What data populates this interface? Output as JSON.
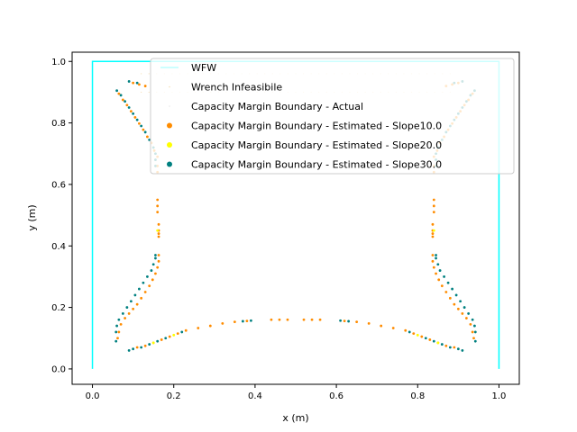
{
  "chart_data": {
    "type": "scatter",
    "title": "",
    "xlabel": "x (m)",
    "ylabel": "y (m)",
    "xlim": [
      -0.05,
      1.05
    ],
    "ylim": [
      -0.05,
      1.03
    ],
    "xticks": [
      "0.0",
      "0.2",
      "0.4",
      "0.6",
      "0.8",
      "1.0"
    ],
    "yticks": [
      "0.0",
      "0.2",
      "0.4",
      "0.6",
      "0.8",
      "1.0"
    ],
    "grid": false,
    "legend_position": "top-right",
    "colors": {
      "wfw": "#00ffff",
      "infeasible": "#f5deb3",
      "actual": "#e8e8e8",
      "slope10": "#ff8c00",
      "slope20": "#ffff00",
      "slope30": "#008080"
    },
    "boundary_path": [
      [
        0.0,
        0.0
      ],
      [
        0.0,
        1.0
      ],
      [
        1.0,
        1.0
      ],
      [
        1.0,
        0.0
      ]
    ],
    "series": [
      {
        "name": "WFW",
        "key": "wfw",
        "marker": "line"
      },
      {
        "name": "Wrench Infeasibile",
        "key": "infeasible",
        "marker": "dot"
      },
      {
        "name": "Capacity Margin Boundary - Actual",
        "key": "actual",
        "marker": "dot"
      },
      {
        "name": "Capacity Margin Boundary - Estimated - Slope10.0",
        "key": "slope10",
        "marker": "dot",
        "points": [
          [
            0.065,
            0.895
          ],
          [
            0.075,
            0.875
          ],
          [
            0.085,
            0.858
          ],
          [
            0.095,
            0.838
          ],
          [
            0.105,
            0.818
          ],
          [
            0.115,
            0.798
          ],
          [
            0.125,
            0.778
          ],
          [
            0.135,
            0.755
          ],
          [
            0.145,
            0.735
          ],
          [
            0.152,
            0.71
          ],
          [
            0.16,
            0.69
          ],
          [
            0.16,
            0.66
          ],
          [
            0.16,
            0.64
          ],
          [
            0.16,
            0.55
          ],
          [
            0.16,
            0.53
          ],
          [
            0.16,
            0.51
          ],
          [
            0.163,
            0.47
          ],
          [
            0.163,
            0.45
          ],
          [
            0.163,
            0.44
          ],
          [
            0.163,
            0.43
          ],
          [
            0.163,
            0.37
          ],
          [
            0.163,
            0.35
          ],
          [
            0.16,
            0.33
          ],
          [
            0.155,
            0.31
          ],
          [
            0.148,
            0.29
          ],
          [
            0.14,
            0.27
          ],
          [
            0.13,
            0.25
          ],
          [
            0.12,
            0.23
          ],
          [
            0.11,
            0.21
          ],
          [
            0.1,
            0.195
          ],
          [
            0.09,
            0.18
          ],
          [
            0.08,
            0.165
          ],
          [
            0.07,
            0.145
          ],
          [
            0.065,
            0.12
          ],
          [
            0.062,
            0.1
          ],
          [
            0.11,
            0.07
          ],
          [
            0.13,
            0.075
          ],
          [
            0.15,
            0.085
          ],
          [
            0.17,
            0.095
          ],
          [
            0.19,
            0.105
          ],
          [
            0.21,
            0.115
          ],
          [
            0.23,
            0.125
          ],
          [
            0.26,
            0.133
          ],
          [
            0.29,
            0.14
          ],
          [
            0.32,
            0.148
          ],
          [
            0.35,
            0.153
          ],
          [
            0.38,
            0.156
          ],
          [
            0.44,
            0.16
          ],
          [
            0.46,
            0.16
          ],
          [
            0.48,
            0.16
          ],
          [
            0.52,
            0.16
          ],
          [
            0.54,
            0.16
          ],
          [
            0.56,
            0.16
          ],
          [
            0.62,
            0.156
          ],
          [
            0.65,
            0.153
          ],
          [
            0.68,
            0.148
          ],
          [
            0.71,
            0.14
          ],
          [
            0.74,
            0.133
          ],
          [
            0.77,
            0.125
          ],
          [
            0.79,
            0.115
          ],
          [
            0.81,
            0.105
          ],
          [
            0.83,
            0.095
          ],
          [
            0.85,
            0.085
          ],
          [
            0.87,
            0.075
          ],
          [
            0.89,
            0.07
          ],
          [
            0.935,
            0.895
          ],
          [
            0.925,
            0.875
          ],
          [
            0.915,
            0.858
          ],
          [
            0.905,
            0.838
          ],
          [
            0.895,
            0.818
          ],
          [
            0.885,
            0.798
          ],
          [
            0.875,
            0.778
          ],
          [
            0.865,
            0.755
          ],
          [
            0.855,
            0.735
          ],
          [
            0.848,
            0.71
          ],
          [
            0.84,
            0.69
          ],
          [
            0.84,
            0.66
          ],
          [
            0.84,
            0.64
          ],
          [
            0.84,
            0.55
          ],
          [
            0.84,
            0.53
          ],
          [
            0.84,
            0.51
          ],
          [
            0.837,
            0.47
          ],
          [
            0.837,
            0.45
          ],
          [
            0.837,
            0.44
          ],
          [
            0.837,
            0.43
          ],
          [
            0.837,
            0.37
          ],
          [
            0.837,
            0.35
          ],
          [
            0.84,
            0.33
          ],
          [
            0.845,
            0.31
          ],
          [
            0.852,
            0.29
          ],
          [
            0.86,
            0.27
          ],
          [
            0.87,
            0.25
          ],
          [
            0.88,
            0.23
          ],
          [
            0.89,
            0.21
          ],
          [
            0.9,
            0.195
          ],
          [
            0.91,
            0.18
          ],
          [
            0.92,
            0.165
          ],
          [
            0.93,
            0.145
          ],
          [
            0.935,
            0.12
          ],
          [
            0.938,
            0.1
          ],
          [
            0.1,
            0.93
          ],
          [
            0.115,
            0.925
          ],
          [
            0.13,
            0.92
          ],
          [
            0.9,
            0.93
          ],
          [
            0.885,
            0.925
          ],
          [
            0.87,
            0.92
          ]
        ]
      },
      {
        "name": "Capacity Margin Boundary - Estimated - Slope20.0",
        "key": "slope20",
        "marker": "dot",
        "points": [
          [
            0.15,
            0.085
          ],
          [
            0.2,
            0.11
          ],
          [
            0.8,
            0.11
          ],
          [
            0.85,
            0.085
          ],
          [
            0.16,
            0.45
          ],
          [
            0.84,
            0.45
          ]
        ]
      },
      {
        "name": "Capacity Margin Boundary - Estimated - Slope30.0",
        "key": "slope30",
        "marker": "dot",
        "points": [
          [
            0.06,
            0.905
          ],
          [
            0.07,
            0.89
          ],
          [
            0.08,
            0.87
          ],
          [
            0.09,
            0.85
          ],
          [
            0.1,
            0.83
          ],
          [
            0.11,
            0.81
          ],
          [
            0.12,
            0.79
          ],
          [
            0.13,
            0.77
          ],
          [
            0.14,
            0.745
          ],
          [
            0.15,
            0.72
          ],
          [
            0.155,
            0.7
          ],
          [
            0.155,
            0.68
          ],
          [
            0.155,
            0.66
          ],
          [
            0.155,
            0.37
          ],
          [
            0.155,
            0.36
          ],
          [
            0.15,
            0.34
          ],
          [
            0.145,
            0.32
          ],
          [
            0.135,
            0.3
          ],
          [
            0.125,
            0.28
          ],
          [
            0.115,
            0.26
          ],
          [
            0.105,
            0.24
          ],
          [
            0.095,
            0.22
          ],
          [
            0.085,
            0.2
          ],
          [
            0.075,
            0.18
          ],
          [
            0.065,
            0.16
          ],
          [
            0.06,
            0.14
          ],
          [
            0.058,
            0.12
          ],
          [
            0.058,
            0.09
          ],
          [
            0.09,
            0.06
          ],
          [
            0.1,
            0.065
          ],
          [
            0.12,
            0.07
          ],
          [
            0.14,
            0.08
          ],
          [
            0.16,
            0.09
          ],
          [
            0.18,
            0.1
          ],
          [
            0.22,
            0.12
          ],
          [
            0.37,
            0.155
          ],
          [
            0.39,
            0.157
          ],
          [
            0.61,
            0.157
          ],
          [
            0.63,
            0.155
          ],
          [
            0.78,
            0.12
          ],
          [
            0.82,
            0.1
          ],
          [
            0.84,
            0.09
          ],
          [
            0.86,
            0.08
          ],
          [
            0.88,
            0.07
          ],
          [
            0.9,
            0.065
          ],
          [
            0.91,
            0.06
          ],
          [
            0.94,
            0.905
          ],
          [
            0.93,
            0.89
          ],
          [
            0.92,
            0.87
          ],
          [
            0.91,
            0.85
          ],
          [
            0.9,
            0.83
          ],
          [
            0.89,
            0.81
          ],
          [
            0.88,
            0.79
          ],
          [
            0.87,
            0.77
          ],
          [
            0.86,
            0.745
          ],
          [
            0.85,
            0.72
          ],
          [
            0.845,
            0.7
          ],
          [
            0.845,
            0.68
          ],
          [
            0.845,
            0.66
          ],
          [
            0.845,
            0.37
          ],
          [
            0.845,
            0.36
          ],
          [
            0.85,
            0.34
          ],
          [
            0.855,
            0.32
          ],
          [
            0.865,
            0.3
          ],
          [
            0.875,
            0.28
          ],
          [
            0.885,
            0.26
          ],
          [
            0.895,
            0.24
          ],
          [
            0.905,
            0.22
          ],
          [
            0.915,
            0.2
          ],
          [
            0.925,
            0.18
          ],
          [
            0.935,
            0.16
          ],
          [
            0.94,
            0.14
          ],
          [
            0.942,
            0.12
          ],
          [
            0.942,
            0.09
          ],
          [
            0.09,
            0.935
          ],
          [
            0.11,
            0.93
          ],
          [
            0.91,
            0.935
          ],
          [
            0.89,
            0.93
          ]
        ]
      }
    ]
  }
}
